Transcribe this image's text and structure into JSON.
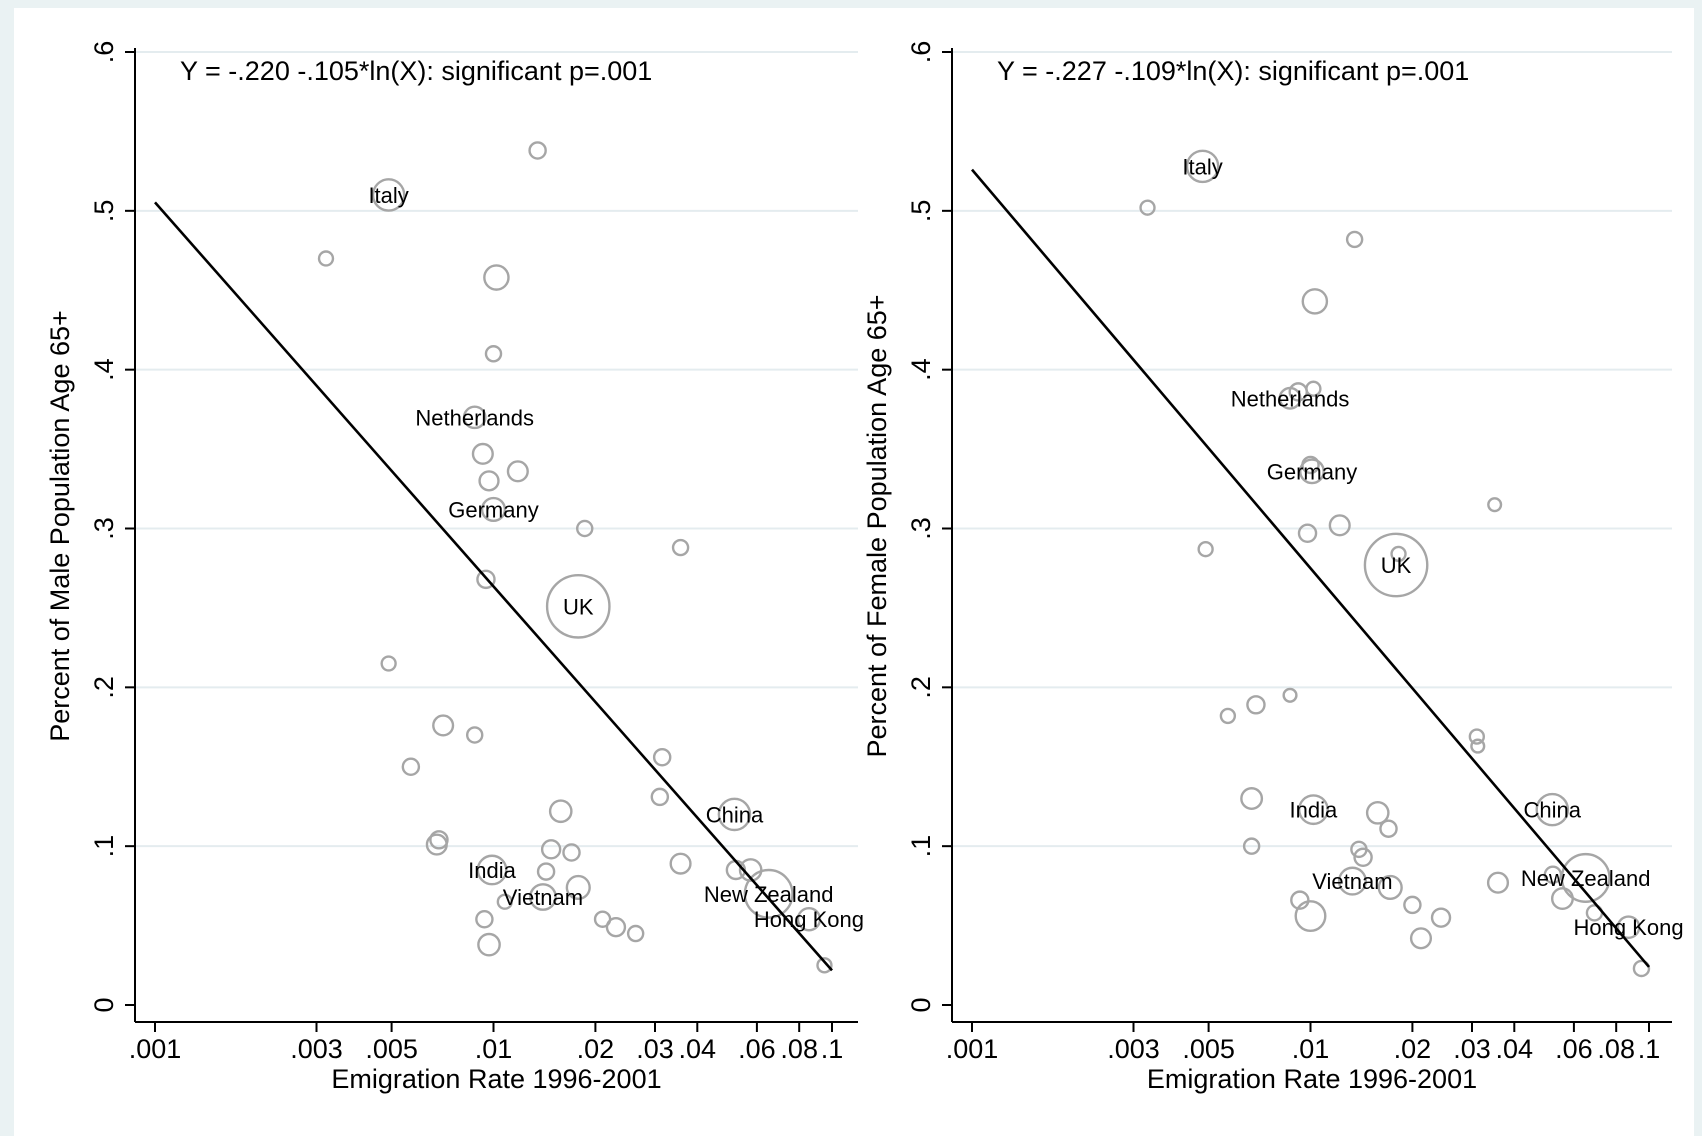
{
  "chart_data": [
    {
      "type": "scatter",
      "subtype": "bubble",
      "x_scale": "log",
      "annotation": "Y =  -.220  -.105*ln(X): significant p=.001",
      "xlabel": "Emigration Rate 1996-2001",
      "ylabel": "Percent of Male Population Age 65+",
      "xlim": [
        0.001,
        0.1
      ],
      "ylim": [
        0,
        0.6
      ],
      "x_ticks": [
        0.001,
        0.003,
        0.005,
        0.01,
        0.02,
        0.03,
        0.04,
        0.06,
        0.08,
        0.1
      ],
      "x_tick_labels": [
        ".001",
        ".003",
        ".005",
        ".01",
        ".02",
        ".03",
        ".04",
        ".06",
        ".08",
        ".1"
      ],
      "y_ticks": [
        0,
        0.1,
        0.2,
        0.3,
        0.4,
        0.5,
        0.6
      ],
      "y_tick_labels": [
        "0",
        ".1",
        ".2",
        ".3",
        ".4",
        ".5",
        ".6"
      ],
      "grid": true,
      "fit_line": {
        "intercept": -0.22,
        "slope": -0.105,
        "x_range": [
          0.001,
          0.1
        ],
        "color": "#000000"
      },
      "points": [
        {
          "x": 0.0049,
          "y": 0.51,
          "size": 3.0,
          "label": "Italy"
        },
        {
          "x": 0.0032,
          "y": 0.47,
          "size": 0.6
        },
        {
          "x": 0.0135,
          "y": 0.538,
          "size": 0.8
        },
        {
          "x": 0.0102,
          "y": 0.458,
          "size": 1.8
        },
        {
          "x": 0.01,
          "y": 0.41,
          "size": 0.7
        },
        {
          "x": 0.0088,
          "y": 0.37,
          "size": 1.4,
          "label": "Netherlands"
        },
        {
          "x": 0.0093,
          "y": 0.347,
          "size": 1.2
        },
        {
          "x": 0.0118,
          "y": 0.336,
          "size": 1.2
        },
        {
          "x": 0.0097,
          "y": 0.33,
          "size": 1.1
        },
        {
          "x": 0.01,
          "y": 0.312,
          "size": 1.6,
          "label": "Germany"
        },
        {
          "x": 0.0186,
          "y": 0.3,
          "size": 0.7
        },
        {
          "x": 0.0357,
          "y": 0.288,
          "size": 0.7
        },
        {
          "x": 0.0095,
          "y": 0.268,
          "size": 0.9
        },
        {
          "x": 0.0178,
          "y": 0.251,
          "size": 12.0,
          "label": "UK"
        },
        {
          "x": 0.0049,
          "y": 0.215,
          "size": 0.6
        },
        {
          "x": 0.0071,
          "y": 0.176,
          "size": 1.2
        },
        {
          "x": 0.0088,
          "y": 0.17,
          "size": 0.7
        },
        {
          "x": 0.0315,
          "y": 0.156,
          "size": 0.8
        },
        {
          "x": 0.0057,
          "y": 0.15,
          "size": 0.8
        },
        {
          "x": 0.031,
          "y": 0.131,
          "size": 0.8
        },
        {
          "x": 0.0158,
          "y": 0.122,
          "size": 1.4
        },
        {
          "x": 0.0515,
          "y": 0.12,
          "size": 3.0,
          "label": "China"
        },
        {
          "x": 0.0069,
          "y": 0.104,
          "size": 0.9
        },
        {
          "x": 0.0068,
          "y": 0.101,
          "size": 1.2
        },
        {
          "x": 0.0148,
          "y": 0.098,
          "size": 1.0
        },
        {
          "x": 0.017,
          "y": 0.096,
          "size": 0.8
        },
        {
          "x": 0.0357,
          "y": 0.089,
          "size": 1.2
        },
        {
          "x": 0.0099,
          "y": 0.085,
          "size": 2.5,
          "label": "India"
        },
        {
          "x": 0.052,
          "y": 0.085,
          "size": 1.0
        },
        {
          "x": 0.0143,
          "y": 0.084,
          "size": 0.8
        },
        {
          "x": 0.0575,
          "y": 0.085,
          "size": 1.4
        },
        {
          "x": 0.0178,
          "y": 0.074,
          "size": 1.6
        },
        {
          "x": 0.065,
          "y": 0.07,
          "size": 7.0,
          "label": "New Zealand"
        },
        {
          "x": 0.014,
          "y": 0.068,
          "size": 2.0,
          "label": "Vietnam"
        },
        {
          "x": 0.0108,
          "y": 0.065,
          "size": 0.6
        },
        {
          "x": 0.0855,
          "y": 0.054,
          "size": 1.5,
          "label": "Hong Kong"
        },
        {
          "x": 0.0094,
          "y": 0.054,
          "size": 0.8
        },
        {
          "x": 0.021,
          "y": 0.054,
          "size": 0.7
        },
        {
          "x": 0.023,
          "y": 0.049,
          "size": 1.0
        },
        {
          "x": 0.0263,
          "y": 0.045,
          "size": 0.7
        },
        {
          "x": 0.0097,
          "y": 0.038,
          "size": 1.4
        },
        {
          "x": 0.095,
          "y": 0.025,
          "size": 0.6
        }
      ]
    },
    {
      "type": "scatter",
      "subtype": "bubble",
      "x_scale": "log",
      "annotation": "Y =  -.227  -.109*ln(X): significant p=.001",
      "xlabel": "Emigration Rate 1996-2001",
      "ylabel": "Percent of Female Population Age 65+",
      "xlim": [
        0.001,
        0.1
      ],
      "ylim": [
        0,
        0.6
      ],
      "x_ticks": [
        0.001,
        0.003,
        0.005,
        0.01,
        0.02,
        0.03,
        0.04,
        0.06,
        0.08,
        0.1
      ],
      "x_tick_labels": [
        ".001",
        ".003",
        ".005",
        ".01",
        ".02",
        ".03",
        ".04",
        ".06",
        ".08",
        ".1"
      ],
      "y_ticks": [
        0,
        0.1,
        0.2,
        0.3,
        0.4,
        0.5,
        0.6
      ],
      "y_tick_labels": [
        "0",
        ".1",
        ".2",
        ".3",
        ".4",
        ".5",
        ".6"
      ],
      "grid": true,
      "fit_line": {
        "intercept": -0.227,
        "slope": -0.109,
        "x_range": [
          0.001,
          0.1
        ],
        "color": "#000000"
      },
      "points": [
        {
          "x": 0.0048,
          "y": 0.528,
          "size": 3.0,
          "label": "Italy"
        },
        {
          "x": 0.0033,
          "y": 0.502,
          "size": 0.6
        },
        {
          "x": 0.0135,
          "y": 0.482,
          "size": 0.7
        },
        {
          "x": 0.0103,
          "y": 0.443,
          "size": 1.8
        },
        {
          "x": 0.0087,
          "y": 0.382,
          "size": 1.3,
          "label": "Netherlands"
        },
        {
          "x": 0.0092,
          "y": 0.386,
          "size": 0.9
        },
        {
          "x": 0.0102,
          "y": 0.388,
          "size": 0.6
        },
        {
          "x": 0.0101,
          "y": 0.336,
          "size": 1.7,
          "label": "Germany"
        },
        {
          "x": 0.01,
          "y": 0.34,
          "size": 0.8
        },
        {
          "x": 0.035,
          "y": 0.315,
          "size": 0.5
        },
        {
          "x": 0.0122,
          "y": 0.302,
          "size": 1.2
        },
        {
          "x": 0.0098,
          "y": 0.297,
          "size": 0.9
        },
        {
          "x": 0.0049,
          "y": 0.287,
          "size": 0.6
        },
        {
          "x": 0.0182,
          "y": 0.284,
          "size": 0.6
        },
        {
          "x": 0.0179,
          "y": 0.277,
          "size": 12.0,
          "label": "UK"
        },
        {
          "x": 0.0087,
          "y": 0.195,
          "size": 0.5
        },
        {
          "x": 0.0069,
          "y": 0.189,
          "size": 0.9
        },
        {
          "x": 0.0057,
          "y": 0.182,
          "size": 0.6
        },
        {
          "x": 0.031,
          "y": 0.169,
          "size": 0.6
        },
        {
          "x": 0.0312,
          "y": 0.163,
          "size": 0.5
        },
        {
          "x": 0.0067,
          "y": 0.13,
          "size": 1.3
        },
        {
          "x": 0.0102,
          "y": 0.123,
          "size": 2.5,
          "label": "India"
        },
        {
          "x": 0.0518,
          "y": 0.123,
          "size": 3.0,
          "label": "China"
        },
        {
          "x": 0.0158,
          "y": 0.121,
          "size": 1.4
        },
        {
          "x": 0.017,
          "y": 0.111,
          "size": 0.8
        },
        {
          "x": 0.0067,
          "y": 0.1,
          "size": 0.7
        },
        {
          "x": 0.0139,
          "y": 0.098,
          "size": 0.7
        },
        {
          "x": 0.0143,
          "y": 0.093,
          "size": 0.9
        },
        {
          "x": 0.052,
          "y": 0.082,
          "size": 0.8
        },
        {
          "x": 0.0358,
          "y": 0.077,
          "size": 1.2
        },
        {
          "x": 0.0133,
          "y": 0.078,
          "size": 2.2,
          "label": "Vietnam"
        },
        {
          "x": 0.065,
          "y": 0.08,
          "size": 7.0,
          "label": "New Zealand"
        },
        {
          "x": 0.0172,
          "y": 0.074,
          "size": 1.6
        },
        {
          "x": 0.0555,
          "y": 0.067,
          "size": 1.3
        },
        {
          "x": 0.0093,
          "y": 0.066,
          "size": 0.9
        },
        {
          "x": 0.02,
          "y": 0.063,
          "size": 0.8
        },
        {
          "x": 0.01,
          "y": 0.056,
          "size": 2.7
        },
        {
          "x": 0.0243,
          "y": 0.055,
          "size": 1.0
        },
        {
          "x": 0.069,
          "y": 0.058,
          "size": 0.7
        },
        {
          "x": 0.087,
          "y": 0.049,
          "size": 1.4,
          "label": "Hong Kong"
        },
        {
          "x": 0.0212,
          "y": 0.042,
          "size": 1.2
        },
        {
          "x": 0.095,
          "y": 0.023,
          "size": 0.7
        }
      ]
    }
  ]
}
